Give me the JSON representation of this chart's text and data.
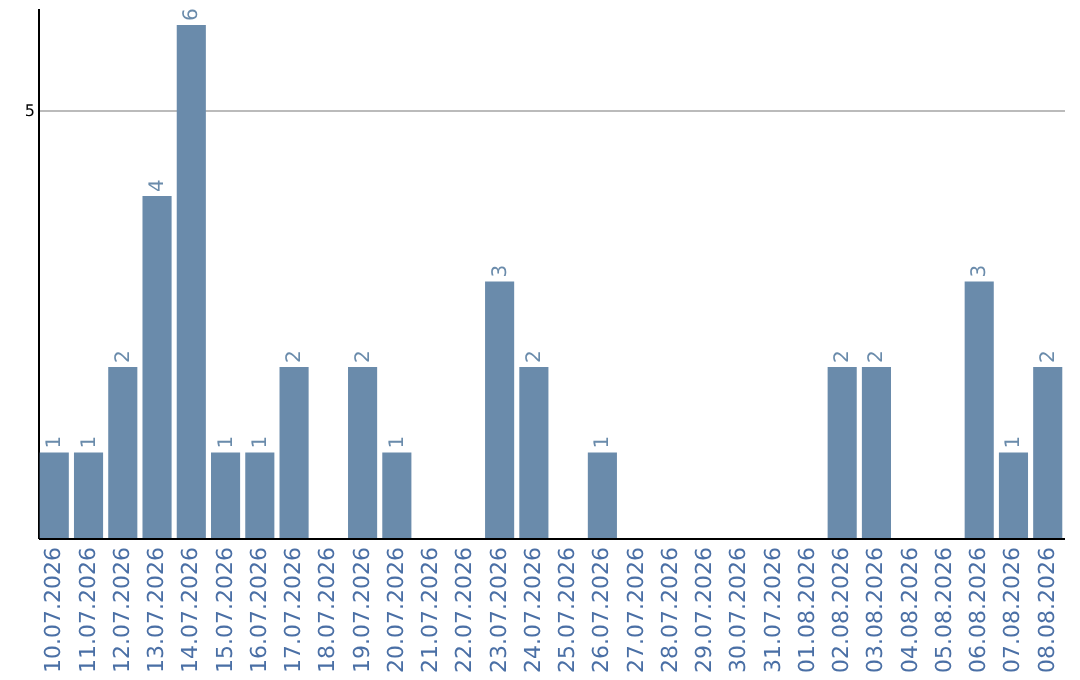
{
  "chart_data": {
    "type": "bar",
    "categories": [
      "10.07.2026",
      "11.07.2026",
      "12.07.2026",
      "13.07.2026",
      "14.07.2026",
      "15.07.2026",
      "16.07.2026",
      "17.07.2026",
      "18.07.2026",
      "19.07.2026",
      "20.07.2026",
      "21.07.2026",
      "22.07.2026",
      "23.07.2026",
      "24.07.2026",
      "25.07.2026",
      "26.07.2026",
      "27.07.2026",
      "28.07.2026",
      "29.07.2026",
      "30.07.2026",
      "31.07.2026",
      "01.08.2026",
      "02.08.2026",
      "03.08.2026",
      "04.08.2026",
      "05.08.2026",
      "06.08.2026",
      "07.08.2026",
      "08.08.2026"
    ],
    "values": [
      1,
      1,
      2,
      4,
      6,
      1,
      1,
      2,
      0,
      2,
      1,
      0,
      0,
      3,
      2,
      0,
      1,
      0,
      0,
      0,
      0,
      0,
      0,
      2,
      2,
      0,
      0,
      3,
      1,
      2
    ],
    "value_labels": [
      "1",
      "1",
      "2",
      "4",
      "6",
      "1",
      "1",
      "2",
      null,
      "2",
      "1",
      null,
      null,
      "3",
      "2",
      null,
      "1",
      null,
      null,
      null,
      null,
      null,
      null,
      "2",
      "2",
      null,
      null,
      "3",
      "1",
      "2"
    ],
    "color": "#6a8bab",
    "ylim": [
      0,
      6.2
    ],
    "yticks": [
      5
    ],
    "grid": "y"
  }
}
